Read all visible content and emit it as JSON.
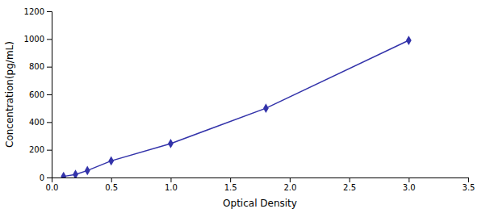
{
  "chart_data": {
    "type": "line",
    "x": [
      0.1,
      0.2,
      0.3,
      0.5,
      1.0,
      1.8,
      3.0
    ],
    "values": [
      8,
      22,
      50,
      120,
      245,
      500,
      990
    ],
    "color": "#3333AA",
    "marker": "diamond",
    "xlabel": "Optical Density",
    "ylabel": "Concentration(pg/mL)",
    "xlim": [
      0,
      3.5
    ],
    "ylim": [
      0,
      1200
    ],
    "xticks": [
      {
        "value": 0,
        "label": "0.0"
      },
      0.5,
      {
        "value": 1.0,
        "label": "1.0"
      },
      1.5,
      {
        "value": 2.0,
        "label": "2.0"
      },
      2.5,
      {
        "value": 3.0,
        "label": "3.0"
      },
      3.5
    ],
    "yticks": [
      0,
      200,
      400,
      600,
      800,
      1000,
      1200
    ]
  }
}
